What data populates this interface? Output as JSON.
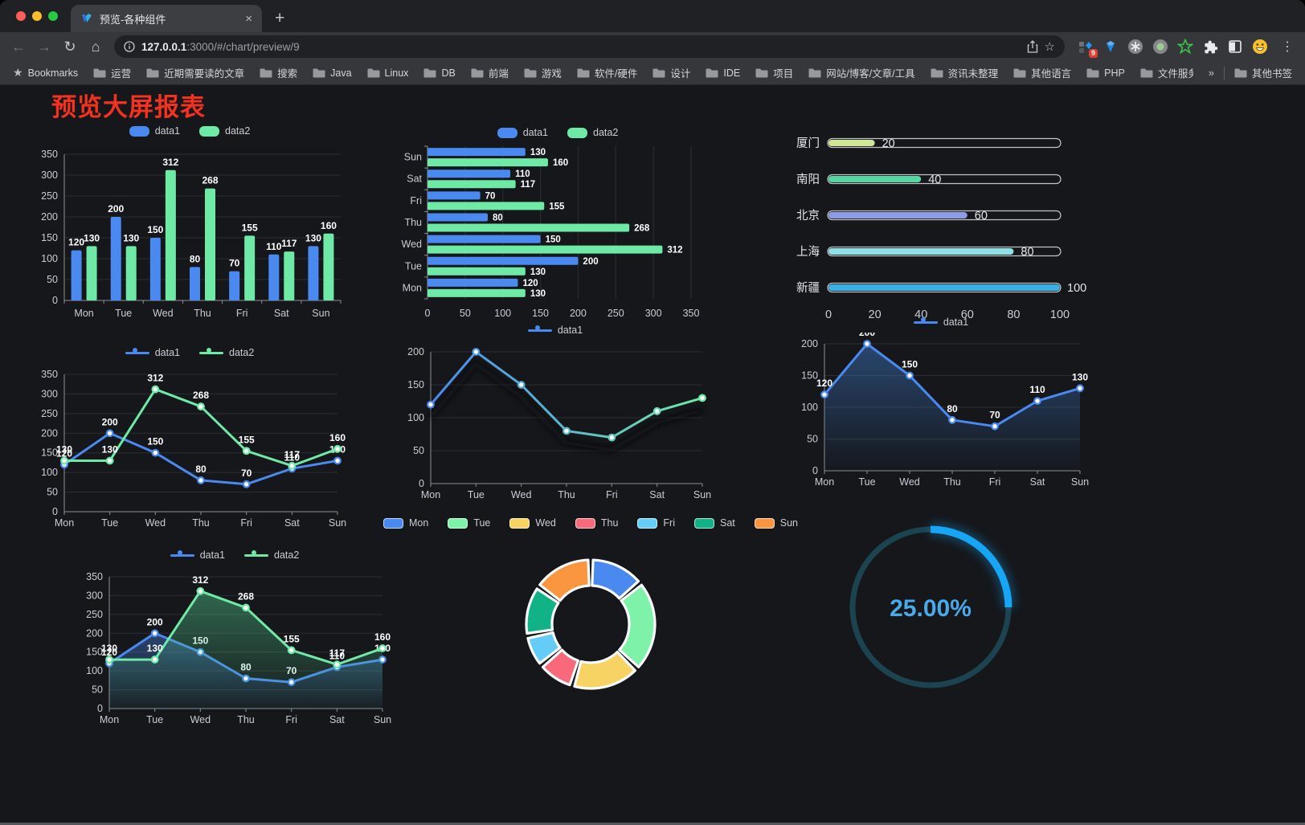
{
  "browser": {
    "tab_title": "预览-各种组件",
    "new_tab_glyph": "+",
    "close_glyph": "×",
    "url_host": "127.0.0.1",
    "url_rest": ":3000/#/chart/preview/9",
    "bookmarks_label": "Bookmarks",
    "bookmarks": [
      "运营",
      "近期需要读的文章",
      "搜索",
      "Java",
      "Linux",
      "DB",
      "前端",
      "游戏",
      "软件/硬件",
      "设计",
      "IDE",
      "项目",
      "网站/博客/文章/工具",
      "资讯未整理",
      "其他语言",
      "PHP",
      "文件服务器"
    ],
    "bookmarks_overflow": "»",
    "other_bookmarks": "其他书签",
    "extension_badge": "9"
  },
  "page": {
    "title": "预览大屏报表",
    "title_color": "#f5321f",
    "background": "#15171b"
  },
  "chart_data": [
    {
      "id": "bar-grouped",
      "type": "bar",
      "categories": [
        "Mon",
        "Tue",
        "Wed",
        "Thu",
        "Fri",
        "Sat",
        "Sun"
      ],
      "series": [
        {
          "name": "data1",
          "color": "#4a89f0",
          "values": [
            120,
            200,
            150,
            80,
            70,
            110,
            130
          ]
        },
        {
          "name": "data2",
          "color": "#6fe9a6",
          "values": [
            130,
            130,
            312,
            268,
            155,
            117,
            160
          ]
        }
      ],
      "ylim": [
        0,
        350
      ],
      "ystep": 50,
      "value_labels": true,
      "legend_marker": "roundrect",
      "grid": true
    },
    {
      "id": "hbar-grouped",
      "type": "hbar",
      "categories": [
        "Mon",
        "Tue",
        "Wed",
        "Thu",
        "Fri",
        "Sat",
        "Sun"
      ],
      "series": [
        {
          "name": "data1",
          "color": "#4a89f0",
          "values": [
            120,
            200,
            150,
            80,
            70,
            110,
            130
          ]
        },
        {
          "name": "data2",
          "color": "#6fe9a6",
          "values": [
            130,
            130,
            312,
            268,
            155,
            117,
            160
          ]
        }
      ],
      "xlim": [
        0,
        350
      ],
      "xstep": 50,
      "value_labels": true,
      "legend_marker": "roundrect",
      "grid": true
    },
    {
      "id": "capsule",
      "type": "capsule",
      "categories": [
        "厦门",
        "南阳",
        "北京",
        "上海",
        "新疆"
      ],
      "values": [
        20,
        40,
        60,
        80,
        100
      ],
      "colors": [
        "#cfe797",
        "#55d6a2",
        "#8e9ce6",
        "#8edfe6",
        "#39b1e4"
      ],
      "xlim": [
        0,
        100
      ],
      "xstep": 20
    },
    {
      "id": "line-basic",
      "type": "line",
      "categories": [
        "Mon",
        "Tue",
        "Wed",
        "Thu",
        "Fri",
        "Sat",
        "Sun"
      ],
      "series": [
        {
          "name": "data1",
          "color": "#4a89f0",
          "values": [
            120,
            200,
            150,
            80,
            70,
            110,
            130
          ]
        },
        {
          "name": "data2",
          "color": "#6fe9a6",
          "values": [
            130,
            130,
            312,
            268,
            155,
            117,
            160
          ]
        }
      ],
      "ylim": [
        0,
        350
      ],
      "ystep": 50,
      "value_labels": true,
      "legend_marker": "line",
      "grid": true
    },
    {
      "id": "line-gradient",
      "type": "line",
      "categories": [
        "Mon",
        "Tue",
        "Wed",
        "Thu",
        "Fri",
        "Sat",
        "Sun"
      ],
      "series": [
        {
          "name": "data1",
          "gradient": [
            "#4a89f0",
            "#6fe9a6"
          ],
          "values": [
            120,
            200,
            150,
            80,
            70,
            110,
            130
          ]
        }
      ],
      "ylim": [
        0,
        200
      ],
      "ystep": 50,
      "value_labels": false,
      "shadow": true,
      "legend_marker": "line",
      "grid": true
    },
    {
      "id": "line-area",
      "type": "line",
      "categories": [
        "Mon",
        "Tue",
        "Wed",
        "Thu",
        "Fri",
        "Sat",
        "Sun"
      ],
      "series": [
        {
          "name": "data1",
          "color": "#4a89f0",
          "values": [
            120,
            200,
            150,
            80,
            70,
            110,
            130
          ],
          "area": [
            "rgba(58,110,180,0.55)",
            "rgba(58,110,180,0.02)"
          ]
        }
      ],
      "ylim": [
        0,
        200
      ],
      "ystep": 50,
      "value_labels": true,
      "legend_marker": "line",
      "grid": true
    },
    {
      "id": "line-area-double",
      "type": "line",
      "categories": [
        "Mon",
        "Tue",
        "Wed",
        "Thu",
        "Fri",
        "Sat",
        "Sun"
      ],
      "series": [
        {
          "name": "data1",
          "color": "#4a89f0",
          "values": [
            120,
            200,
            150,
            80,
            70,
            110,
            130
          ],
          "area": [
            "rgba(74,137,240,0.40)",
            "rgba(74,137,240,0.03)"
          ]
        },
        {
          "name": "data2",
          "color": "#6fe9a6",
          "values": [
            130,
            130,
            312,
            268,
            155,
            117,
            160
          ],
          "area": [
            "rgba(80,200,140,0.45)",
            "rgba(80,200,140,0.03)"
          ]
        }
      ],
      "ylim": [
        0,
        350
      ],
      "ystep": 50,
      "value_labels": true,
      "legend_marker": "line",
      "grid": true
    },
    {
      "id": "donut",
      "type": "pie",
      "categories": [
        "Mon",
        "Tue",
        "Wed",
        "Thu",
        "Fri",
        "Sat",
        "Sun"
      ],
      "values": [
        120,
        200,
        150,
        80,
        70,
        110,
        130
      ],
      "colors": [
        "#4a89f0",
        "#7df2a8",
        "#f7d364",
        "#f7697b",
        "#63cdf7",
        "#11b286",
        "#f9963f"
      ],
      "legend_marker": "roundrect-border"
    },
    {
      "id": "ring-progress",
      "type": "gauge",
      "value": 25,
      "label": "25.00%",
      "color": "#16a6f5",
      "track_color": "#1c4350",
      "text_color": "#49a9e9"
    }
  ]
}
